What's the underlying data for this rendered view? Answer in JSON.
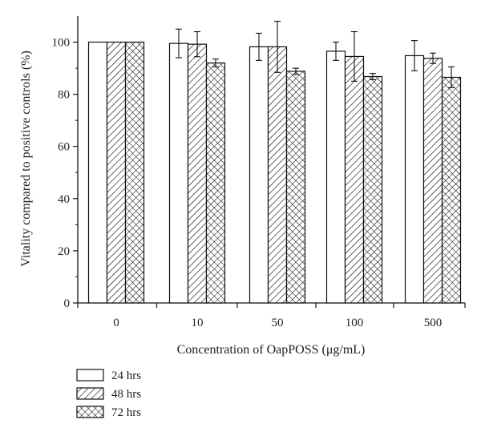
{
  "chart_data": {
    "type": "bar",
    "title": "",
    "xlabel": "Concentration of OapPOSS (μg/mL)",
    "ylabel": "Vitality compared to positive controls (%)",
    "ylim": [
      0,
      110
    ],
    "yticks": [
      0,
      20,
      40,
      60,
      80,
      100
    ],
    "categories": [
      "0",
      "10",
      "50",
      "100",
      "500"
    ],
    "series": [
      {
        "name": "24 hrs",
        "pattern": "none",
        "values": [
          100,
          99.5,
          98.2,
          96.5,
          94.8
        ],
        "errors": [
          0,
          5.5,
          5.2,
          3.5,
          5.8
        ]
      },
      {
        "name": "48 hrs",
        "pattern": "diagonal",
        "values": [
          100,
          99.2,
          98.2,
          94.5,
          93.8
        ],
        "errors": [
          0,
          4.8,
          9.8,
          9.5,
          2.0
        ]
      },
      {
        "name": "72 hrs",
        "pattern": "crosshatch",
        "values": [
          100,
          92.0,
          88.8,
          86.8,
          86.5
        ],
        "errors": [
          0,
          1.5,
          1.2,
          1.2,
          4.0
        ]
      }
    ],
    "legend_position": "bottom-left",
    "grid": false,
    "colors": {
      "bar_stroke": "#111111",
      "bar_fill": "#ffffff",
      "axis": "#111111"
    }
  }
}
